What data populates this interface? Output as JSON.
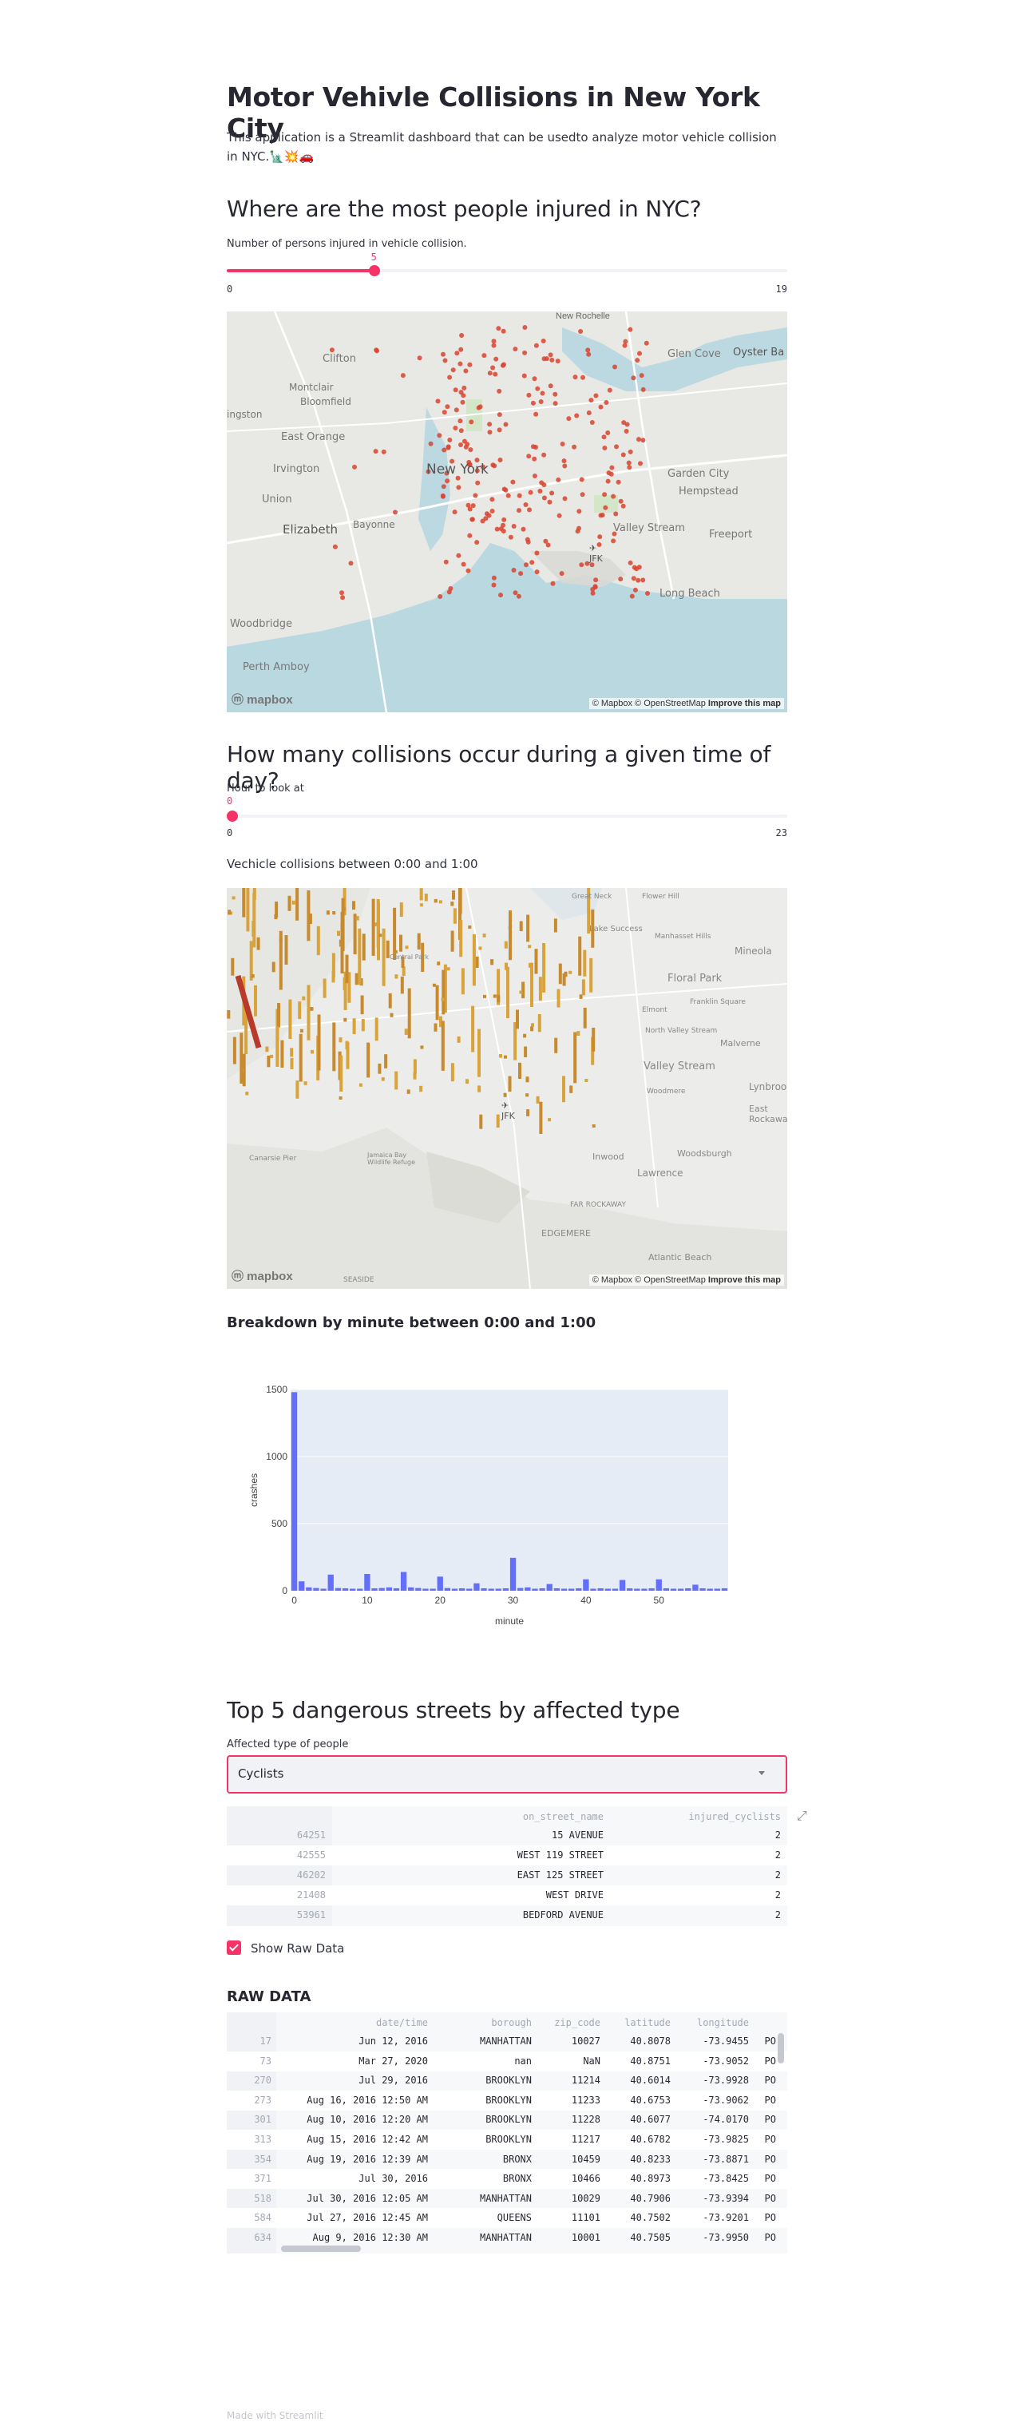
{
  "title": "Motor Vehivle Collisions in New York City",
  "intro": "This application is a Streamlit dashboard that can be usedto analyze motor vehicle collision in NYC.",
  "intro_emoji": "🗽💥🚗",
  "section_injured": {
    "heading": "Where are the most people injured in NYC?",
    "slider_label": "Number of persons injured in vehicle collision.",
    "slider_value": "5",
    "slider_min": "0",
    "slider_max": "19",
    "slider_fraction": 0.263
  },
  "map1": {
    "labels": [
      "New Rochelle",
      "Clifton",
      "Montclair",
      "Bloomfield",
      "ingston",
      "East Orange",
      "Irvington",
      "Union",
      "Elizabeth",
      "Bayonne",
      "New York",
      "Glen Cove",
      "Oyster Ba",
      "Garden City",
      "Hempstead",
      "Valley Stream",
      "Freeport",
      "JFK",
      "Long Beach",
      "Woodbridge",
      "Perth Amboy"
    ],
    "attribution_prefix": "© Mapbox © OpenStreetMap",
    "attribution_link": "Improve this map",
    "logo": "mapbox"
  },
  "section_time": {
    "heading": "How many collisions occur during a given time of day?",
    "slider_label": "Hour to look at",
    "slider_value": "0",
    "slider_min": "0",
    "slider_max": "23",
    "slider_fraction": 0.0,
    "caption": "Vechicle collisions between 0:00 and 1:00"
  },
  "map2": {
    "labels": [
      "Great Neck",
      "Flower Hill",
      "Lake Success",
      "Manhasset Hills",
      "Mineola",
      "Floral Park",
      "Franklin Square",
      "Elmont",
      "North Valley Stream",
      "Malverne",
      "Valley Stream",
      "Lynbrook",
      "East Rockaway",
      "Woodmere",
      "Lawrence",
      "Woodsburgh",
      "Inwood",
      "JFK",
      "Canarsie Pier",
      "Jamaica Bay Wildlife Refuge",
      "FAR ROCKAWAY",
      "EDGEMERE",
      "Atlantic Beach",
      "SEASIDE",
      "Central Park"
    ],
    "attribution_prefix": "© Mapbox © OpenStreetMap",
    "attribution_link": "Improve this map",
    "logo": "mapbox"
  },
  "section_minute": {
    "heading": "Breakdown by minute between 0:00 and 1:00"
  },
  "chart_data": {
    "type": "bar",
    "title": "",
    "xlabel": "minute",
    "ylabel": "crashes",
    "xlim": [
      -0.5,
      59.5
    ],
    "ylim": [
      0,
      1500
    ],
    "x_ticks": [
      0,
      10,
      20,
      30,
      40,
      50
    ],
    "y_ticks": [
      0,
      500,
      1000,
      1500
    ],
    "categories": [
      0,
      1,
      2,
      3,
      4,
      5,
      6,
      7,
      8,
      9,
      10,
      11,
      12,
      13,
      14,
      15,
      16,
      17,
      18,
      19,
      20,
      21,
      22,
      23,
      24,
      25,
      26,
      27,
      28,
      29,
      30,
      31,
      32,
      33,
      34,
      35,
      36,
      37,
      38,
      39,
      40,
      41,
      42,
      43,
      44,
      45,
      46,
      47,
      48,
      49,
      50,
      51,
      52,
      53,
      54,
      55,
      56,
      57,
      58,
      59
    ],
    "values": [
      1480,
      70,
      25,
      20,
      15,
      120,
      20,
      18,
      15,
      15,
      125,
      18,
      20,
      25,
      18,
      140,
      25,
      20,
      15,
      15,
      105,
      20,
      15,
      18,
      15,
      55,
      18,
      15,
      15,
      18,
      245,
      20,
      25,
      15,
      18,
      50,
      18,
      15,
      15,
      18,
      85,
      15,
      18,
      15,
      15,
      80,
      18,
      15,
      15,
      18,
      85,
      18,
      15,
      15,
      18,
      45,
      18,
      15,
      15,
      18
    ],
    "grid": true,
    "bar_color": "#636efa",
    "plot_bg": "#e5ecf6"
  },
  "section_top5": {
    "heading": "Top 5 dangerous streets by affected type",
    "select_label": "Affected type of people",
    "select_value": "Cyclists",
    "columns": [
      "on_street_name",
      "injured_cyclists"
    ],
    "rows": [
      {
        "idx": "64251",
        "street": "15 AVENUE",
        "count": "2"
      },
      {
        "idx": "42555",
        "street": "WEST 119 STREET",
        "count": "2"
      },
      {
        "idx": "46202",
        "street": "EAST 125 STREET",
        "count": "2"
      },
      {
        "idx": "21408",
        "street": "WEST DRIVE",
        "count": "2"
      },
      {
        "idx": "53961",
        "street": "BEDFORD AVENUE",
        "count": "2"
      }
    ]
  },
  "checkbox": {
    "label": "Show Raw Data",
    "checked": true
  },
  "raw_data": {
    "heading": "RAW DATA",
    "columns": [
      "date/time",
      "borough",
      "zip_code",
      "latitude",
      "longitude",
      ""
    ],
    "rows": [
      {
        "idx": "17",
        "date": "Jun 12, 2016",
        "borough": "MANHATTAN",
        "zip": "10027",
        "lat": "40.8078",
        "lon": "-73.9455",
        "more": "PO"
      },
      {
        "idx": "73",
        "date": "Mar 27, 2020",
        "borough": "nan",
        "zip": "NaN",
        "lat": "40.8751",
        "lon": "-73.9052",
        "more": "PO"
      },
      {
        "idx": "270",
        "date": "Jul 29, 2016",
        "borough": "BROOKLYN",
        "zip": "11214",
        "lat": "40.6014",
        "lon": "-73.9928",
        "more": "PO"
      },
      {
        "idx": "273",
        "date": "Aug 16, 2016 12:50 AM",
        "borough": "BROOKLYN",
        "zip": "11233",
        "lat": "40.6753",
        "lon": "-73.9062",
        "more": "PO"
      },
      {
        "idx": "301",
        "date": "Aug 10, 2016 12:20 AM",
        "borough": "BROOKLYN",
        "zip": "11228",
        "lat": "40.6077",
        "lon": "-74.0170",
        "more": "PO"
      },
      {
        "idx": "313",
        "date": "Aug 15, 2016 12:42 AM",
        "borough": "BROOKLYN",
        "zip": "11217",
        "lat": "40.6782",
        "lon": "-73.9825",
        "more": "PO"
      },
      {
        "idx": "354",
        "date": "Aug 19, 2016 12:39 AM",
        "borough": "BRONX",
        "zip": "10459",
        "lat": "40.8233",
        "lon": "-73.8871",
        "more": "PO"
      },
      {
        "idx": "371",
        "date": "Jul 30, 2016",
        "borough": "BRONX",
        "zip": "10466",
        "lat": "40.8973",
        "lon": "-73.8425",
        "more": "PO"
      },
      {
        "idx": "518",
        "date": "Jul 30, 2016 12:05 AM",
        "borough": "MANHATTAN",
        "zip": "10029",
        "lat": "40.7906",
        "lon": "-73.9394",
        "more": "PO"
      },
      {
        "idx": "584",
        "date": "Jul 27, 2016 12:45 AM",
        "borough": "QUEENS",
        "zip": "11101",
        "lat": "40.7502",
        "lon": "-73.9201",
        "more": "PO"
      },
      {
        "idx": "634",
        "date": "Aug 9, 2016 12:30 AM",
        "borough": "MANHATTAN",
        "zip": "10001",
        "lat": "40.7505",
        "lon": "-73.9950",
        "more": "PO"
      }
    ]
  },
  "footer": "Made with Streamlit"
}
